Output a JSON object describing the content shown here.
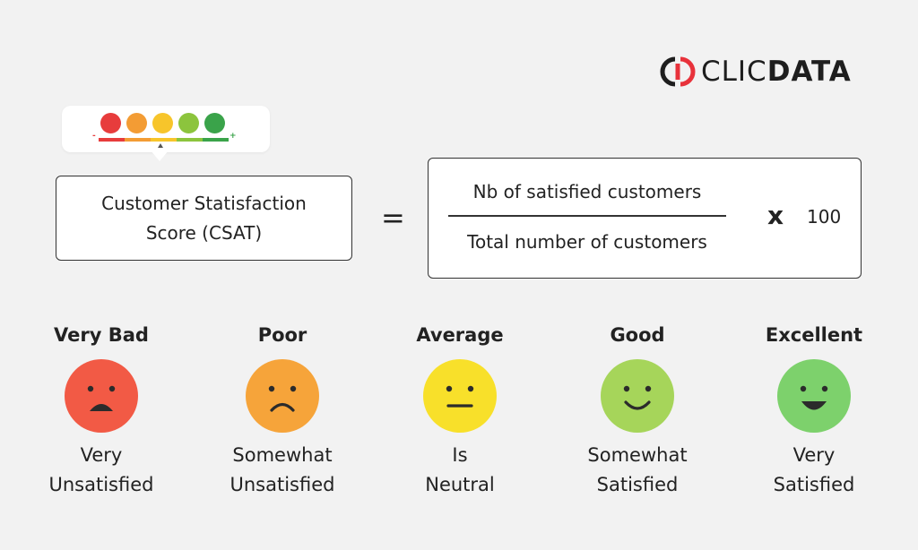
{
  "brand": {
    "mark": "CLIC",
    "mark_bold": "DATA",
    "icon": "clicdata-logo-icon"
  },
  "widget": {
    "faces": [
      "#e73c3c",
      "#f39c34",
      "#f7c52b",
      "#8cc43d",
      "#3aa34a"
    ],
    "minus_sign": "-",
    "plus_sign": "+"
  },
  "formula": {
    "lhs": "Customer Statisfaction Score (CSAT)",
    "equals": "=",
    "numerator": "Nb of satisfied customers",
    "denominator": "Total number of customers",
    "multiply": "x",
    "factor": "100"
  },
  "scale": [
    {
      "title": "Very Bad",
      "line1": "Very",
      "line2": "Unsatisfied",
      "color": "#f25a45",
      "mood": "very-sad"
    },
    {
      "title": "Poor",
      "line1": "Somewhat",
      "line2": "Unsatisfied",
      "color": "#f6a43a",
      "mood": "sad"
    },
    {
      "title": "Average",
      "line1": "Is",
      "line2": "Neutral",
      "color": "#f8e02a",
      "mood": "neutral"
    },
    {
      "title": "Good",
      "line1": "Somewhat",
      "line2": "Satisfied",
      "color": "#a6d55a",
      "mood": "smile"
    },
    {
      "title": "Excellent",
      "line1": "Very",
      "line2": "Satisfied",
      "color": "#7dd16c",
      "mood": "grin"
    }
  ]
}
